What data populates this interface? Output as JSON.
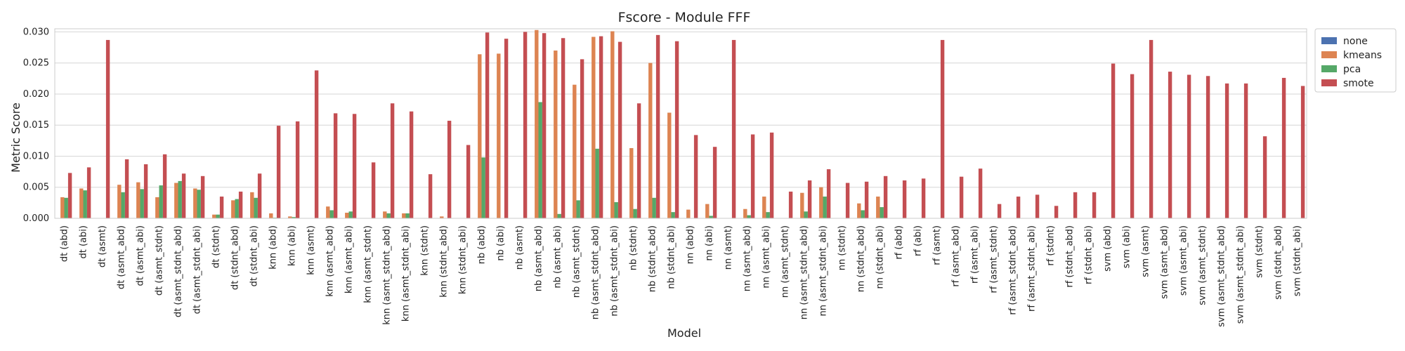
{
  "chart_data": {
    "type": "bar",
    "title": "Fscore - Module FFF",
    "xlabel": "Model",
    "ylabel": "Metric Score",
    "ylim": [
      0,
      0.0305
    ],
    "yticks": [
      "0.000",
      "0.005",
      "0.010",
      "0.015",
      "0.020",
      "0.025",
      "0.030"
    ],
    "grid": true,
    "legend_position": "outside-top-right",
    "categories": [
      "dt (abd)",
      "dt (abi)",
      "dt (asmt)",
      "dt (asmt_abd)",
      "dt (asmt_abi)",
      "dt (asmt_stdnt)",
      "dt (asmt_stdnt_abd)",
      "dt (asmt_stdnt_abi)",
      "dt (stdnt)",
      "dt (stdnt_abd)",
      "dt (stdnt_abi)",
      "knn (abd)",
      "knn (abi)",
      "knn (asmt)",
      "knn (asmt_abd)",
      "knn (asmt_abi)",
      "knn (asmt_stdnt)",
      "knn (asmt_stdnt_abd)",
      "knn (asmt_stdnt_abi)",
      "knn (stdnt)",
      "knn (stdnt_abd)",
      "knn (stdnt_abi)",
      "nb (abd)",
      "nb (abi)",
      "nb (asmt)",
      "nb (asmt_abd)",
      "nb (asmt_abi)",
      "nb (asmt_stdnt)",
      "nb (asmt_stdnt_abd)",
      "nb (asmt_stdnt_abi)",
      "nb (stdnt)",
      "nb (stdnt_abd)",
      "nb (stdnt_abi)",
      "nn (abd)",
      "nn (abi)",
      "nn (asmt)",
      "nn (asmt_abd)",
      "nn (asmt_abi)",
      "nn (asmt_stdnt)",
      "nn (asmt_stdnt_abd)",
      "nn (asmt_stdnt_abi)",
      "nn (stdnt)",
      "nn (stdnt_abd)",
      "nn (stdnt_abi)",
      "rf (abd)",
      "rf (abi)",
      "rf (asmt)",
      "rf (asmt_abd)",
      "rf (asmt_abi)",
      "rf (asmt_stdnt)",
      "rf (asmt_stdnt_abd)",
      "rf (asmt_stdnt_abi)",
      "rf (stdnt)",
      "rf (stdnt_abd)",
      "rf (stdnt_abi)",
      "svm (abd)",
      "svm (abi)",
      "svm (asmt)",
      "svm (asmt_abd)",
      "svm (asmt_abi)",
      "svm (asmt_stdnt)",
      "svm (asmt_stdnt_abd)",
      "svm (asmt_stdnt_abi)",
      "svm (stdnt)",
      "svm (stdnt_abd)",
      "svm (stdnt_abi)"
    ],
    "series": [
      {
        "name": "none",
        "color": "#4c72b0",
        "values": [
          0,
          0,
          0,
          0,
          0,
          0,
          0,
          0,
          0,
          0,
          0,
          0,
          0,
          0,
          0,
          0,
          0,
          0,
          0,
          0,
          0,
          0,
          0,
          0,
          0,
          0,
          0,
          0,
          0,
          0,
          0,
          0,
          0,
          0,
          0,
          0,
          0,
          0,
          0,
          0,
          0,
          0,
          0,
          0,
          0,
          0,
          0,
          0,
          0,
          0,
          0,
          0,
          0,
          0,
          0,
          0,
          0,
          0,
          0,
          0,
          0,
          0,
          0,
          0,
          0,
          0
        ]
      },
      {
        "name": "kmeans",
        "color": "#dd8452",
        "values": [
          0.0034,
          0.0048,
          0,
          0.0054,
          0.0058,
          0.0034,
          0.0057,
          0.0048,
          0.0006,
          0.0029,
          0.0042,
          0.0008,
          0.0003,
          0,
          0.0019,
          0.0009,
          0,
          0.0011,
          0.0008,
          0,
          0.0003,
          0,
          0.0264,
          0.0265,
          0,
          0.0303,
          0.027,
          0.0215,
          0.0292,
          0.0301,
          0.0113,
          0.025,
          0.017,
          0.0014,
          0.0023,
          0,
          0.0015,
          0.0035,
          0,
          0.0041,
          0.005,
          0,
          0.0024,
          0.0035,
          0,
          0,
          0,
          0,
          0,
          0,
          0,
          0,
          0,
          0,
          0,
          0,
          0,
          0,
          0,
          0,
          0,
          0,
          0,
          0,
          0,
          0
        ]
      },
      {
        "name": "pca",
        "color": "#55a868",
        "values": [
          0.0033,
          0.0045,
          0,
          0.0042,
          0.0047,
          0.0053,
          0.006,
          0.0046,
          0.0006,
          0.0031,
          0.0033,
          0.0001,
          0.0002,
          0,
          0.0013,
          0.0011,
          0,
          0.0008,
          0.0008,
          0,
          0,
          0,
          0.0098,
          0,
          0,
          0.0187,
          0.0007,
          0.0029,
          0.0112,
          0.0026,
          0.0015,
          0.0033,
          0.001,
          0,
          0.0004,
          0,
          0.0005,
          0.001,
          0,
          0.0011,
          0.0035,
          0,
          0.0013,
          0.0018,
          0,
          0,
          0,
          0,
          0,
          0,
          0,
          0,
          0,
          0,
          0,
          0,
          0,
          0,
          0,
          0,
          0,
          0,
          0,
          0,
          0,
          0
        ]
      },
      {
        "name": "smote",
        "color": "#c44e52",
        "values": [
          0.0073,
          0.0082,
          0.0287,
          0.0095,
          0.0087,
          0.0103,
          0.0072,
          0.0068,
          0.0035,
          0.0043,
          0.0072,
          0.0149,
          0.0156,
          0.0238,
          0.0169,
          0.0168,
          0.009,
          0.0185,
          0.0172,
          0.0071,
          0.0157,
          0.0118,
          0.0299,
          0.0289,
          0.03,
          0.0298,
          0.029,
          0.0256,
          0.0293,
          0.0284,
          0.0185,
          0.0295,
          0.0285,
          0.0134,
          0.0115,
          0.0287,
          0.0135,
          0.0138,
          0.0043,
          0.0061,
          0.0079,
          0.0057,
          0.0059,
          0.0068,
          0.0061,
          0.0064,
          0.0287,
          0.0067,
          0.008,
          0.0023,
          0.0035,
          0.0038,
          0.002,
          0.0042,
          0.0042,
          0.0249,
          0.0232,
          0.0287,
          0.0236,
          0.0231,
          0.0229,
          0.0217,
          0.0217,
          0.0132,
          0.0226,
          0.0213
        ]
      }
    ]
  }
}
